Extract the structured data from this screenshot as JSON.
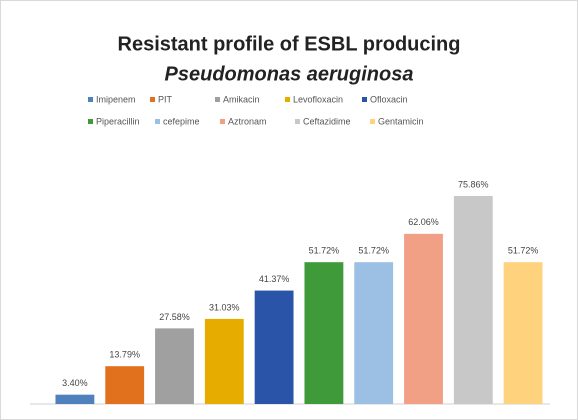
{
  "chart_data": {
    "type": "bar",
    "title": "Resistant profile of ESBL producing",
    "subtitle": "Pseudomonas aeruginosa",
    "categories": [
      "Imipenem",
      "PIT",
      "Amikacin",
      "Levofloxacin",
      "Ofloxacin",
      "Piperacillin",
      "cefepime",
      "Aztronam",
      "Ceftazidime",
      "Gentamicin"
    ],
    "values": [
      3.4,
      13.79,
      27.58,
      31.03,
      41.37,
      51.72,
      51.72,
      62.06,
      75.86,
      51.72
    ],
    "value_labels": [
      "3.40%",
      "13.79%",
      "27.58%",
      "31.03%",
      "41.37%",
      "51.72%",
      "51.72%",
      "62.06%",
      "75.86%",
      "51.72%"
    ],
    "colors": [
      "#4f81bd",
      "#e2711d",
      "#a0a0a0",
      "#e6ac00",
      "#2a54a8",
      "#3f9a3a",
      "#9cc0e4",
      "#f2a085",
      "#c8c8c8",
      "#ffd37d"
    ],
    "legend": "top"
  }
}
